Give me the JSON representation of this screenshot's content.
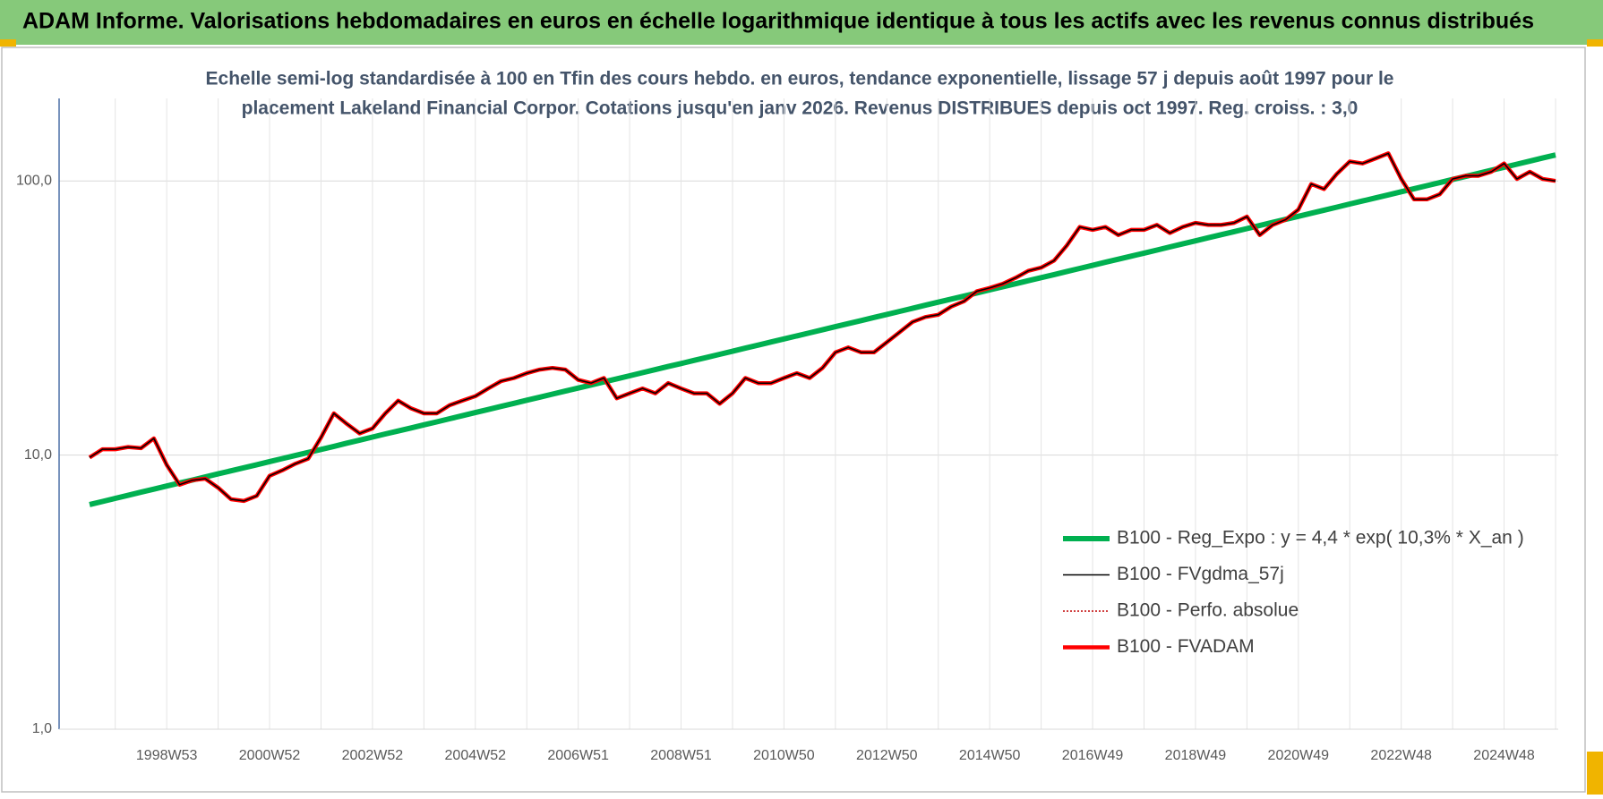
{
  "chart_data": {
    "type": "line",
    "title": "ADAM Informe. Valorisations hebdomadaires en euros en échelle logarithmique identique à tous les actifs avec les revenus connus distribués",
    "subtitle": [
      "Echelle semi-log standardisée à 100 en Tfin des cours hebdo. en euros, tendance exponentielle, lissage 57 j depuis août 1997 pour le",
      "placement Lakeland Financial Corpor. Cotations jusqu'en janv 2026. Revenus DISTRIBUES depuis oct 1997. Reg. croiss. : 3,0"
    ],
    "categories": [
      null,
      null,
      null,
      null,
      null,
      null,
      "1998W53",
      null,
      null,
      null,
      null,
      null,
      null,
      null,
      "2000W52",
      null,
      null,
      null,
      null,
      null,
      null,
      null,
      "2002W52",
      null,
      null,
      null,
      null,
      null,
      null,
      null,
      "2004W52",
      null,
      null,
      null,
      null,
      null,
      null,
      null,
      "2006W51",
      null,
      null,
      null,
      null,
      null,
      null,
      null,
      "2008W51",
      null,
      null,
      null,
      null,
      null,
      null,
      null,
      "2010W50",
      null,
      null,
      null,
      null,
      null,
      null,
      null,
      "2012W50",
      null,
      null,
      null,
      null,
      null,
      null,
      null,
      "2014W50",
      null,
      null,
      null,
      null,
      null,
      null,
      null,
      "2016W49",
      null,
      null,
      null,
      null,
      null,
      null,
      null,
      "2018W49",
      null,
      null,
      null,
      null,
      null,
      null,
      null,
      "2020W49",
      null,
      null,
      null,
      null,
      null,
      null,
      null,
      "2022W48",
      null,
      null,
      null,
      null,
      null,
      null,
      null,
      "2024W48",
      null,
      null,
      null,
      null
    ],
    "yscale": "log",
    "ylim": [
      1,
      200
    ],
    "yticks": [
      {
        "value": 1,
        "label": "1,0"
      },
      {
        "value": 10,
        "label": "10,0"
      },
      {
        "value": 100,
        "label": "100,0"
      }
    ],
    "grid": true,
    "legend": "lower right",
    "series": [
      {
        "name": "B100 - Reg_Expo : y = 4,4 * exp( 10,3% *  X_an )",
        "color": "#00b050",
        "line_width": 6,
        "dashed": false,
        "values": [
          6.6,
          6.77,
          6.95,
          7.13,
          7.32,
          7.51,
          7.71,
          7.91,
          8.11,
          8.32,
          8.54,
          8.76,
          8.99,
          9.22,
          9.47,
          9.71,
          9.96,
          10.22,
          10.49,
          10.76,
          11.05,
          11.34,
          11.63,
          11.94,
          12.24,
          12.56,
          12.89,
          13.22,
          13.57,
          13.92,
          14.29,
          14.66,
          15.05,
          15.44,
          15.85,
          16.26,
          16.68,
          17.12,
          17.56,
          18.02,
          18.49,
          18.97,
          19.47,
          19.98,
          20.5,
          21.04,
          21.58,
          22.15,
          22.72,
          23.31,
          23.92,
          24.55,
          25.19,
          25.85,
          26.52,
          27.22,
          27.92,
          28.65,
          29.4,
          30.16,
          30.95,
          31.76,
          32.59,
          33.44,
          34.31,
          35.21,
          36.13,
          37.07,
          38.03,
          39.02,
          40.04,
          41.09,
          42.16,
          43.26,
          44.39,
          45.55,
          46.74,
          47.96,
          49.21,
          50.5,
          51.81,
          53.16,
          54.55,
          55.97,
          57.43,
          58.93,
          60.47,
          62.05,
          63.66,
          65.32,
          67.03,
          68.78,
          70.57,
          72.41,
          74.3,
          76.24,
          78.23,
          80.27,
          82.37,
          84.52,
          86.72,
          88.98,
          91.31,
          93.69,
          96.13,
          98.64,
          101.21,
          103.86,
          106.56,
          109.34,
          112.2,
          115.13,
          118.12,
          121.2,
          124.37
        ]
      },
      {
        "name": "B100 - FVgdma_57j",
        "color": "#000000",
        "line_width": 1.5,
        "dashed": false,
        "values": [
          9.8,
          10.5,
          10.5,
          10.7,
          10.6,
          11.5,
          9.2,
          7.8,
          8.1,
          8.2,
          7.6,
          6.9,
          6.8,
          7.1,
          8.4,
          8.8,
          9.3,
          9.7,
          11.6,
          14.2,
          13.0,
          12.0,
          12.5,
          14.2,
          15.8,
          14.8,
          14.2,
          14.2,
          15.2,
          15.8,
          16.4,
          17.5,
          18.6,
          19.1,
          19.9,
          20.5,
          20.8,
          20.5,
          18.8,
          18.3,
          19.1,
          16.1,
          16.8,
          17.5,
          16.8,
          18.3,
          17.5,
          16.8,
          16.8,
          15.4,
          16.8,
          19.1,
          18.3,
          18.3,
          19.1,
          19.9,
          19.1,
          20.8,
          23.7,
          24.7,
          23.7,
          23.7,
          25.8,
          28.1,
          30.6,
          31.9,
          32.5,
          34.8,
          36.4,
          39.6,
          40.7,
          42.1,
          44.3,
          47.0,
          48.3,
          51.2,
          58.2,
          67.9,
          66.3,
          67.9,
          63.5,
          66.3,
          66.3,
          69.1,
          64.6,
          67.9,
          70.3,
          69.1,
          69.1,
          70.3,
          74.1,
          63.5,
          69.1,
          72.2,
          78.6,
          97.4,
          93.4,
          106.2,
          117.7,
          115.8,
          120.8,
          126.1,
          101.7,
          85.7,
          85.7,
          89.4,
          101.7,
          104.4,
          104.4,
          108.0,
          115.8,
          101.7,
          108.0,
          101.7,
          100.0
        ]
      },
      {
        "name": "B100 - Perfo. absolue",
        "color": "#c00000",
        "line_width": 1.5,
        "dashed": true,
        "values": [
          9.8,
          10.5,
          10.5,
          10.7,
          10.6,
          11.5,
          9.2,
          7.8,
          8.1,
          8.2,
          7.6,
          6.9,
          6.8,
          7.1,
          8.4,
          8.8,
          9.3,
          9.7,
          11.6,
          14.2,
          13.0,
          12.0,
          12.5,
          14.2,
          15.8,
          14.8,
          14.2,
          14.2,
          15.2,
          15.8,
          16.4,
          17.5,
          18.6,
          19.1,
          19.9,
          20.5,
          20.8,
          20.5,
          18.8,
          18.3,
          19.1,
          16.1,
          16.8,
          17.5,
          16.8,
          18.3,
          17.5,
          16.8,
          16.8,
          15.4,
          16.8,
          19.1,
          18.3,
          18.3,
          19.1,
          19.9,
          19.1,
          20.8,
          23.7,
          24.7,
          23.7,
          23.7,
          25.8,
          28.1,
          30.6,
          31.9,
          32.5,
          34.8,
          36.4,
          39.6,
          40.7,
          42.1,
          44.3,
          47.0,
          48.3,
          51.2,
          58.2,
          67.9,
          66.3,
          67.9,
          63.5,
          66.3,
          66.3,
          69.1,
          64.6,
          67.9,
          70.3,
          69.1,
          69.1,
          70.3,
          74.1,
          63.5,
          69.1,
          72.2,
          78.6,
          97.4,
          93.4,
          106.2,
          117.7,
          115.8,
          120.8,
          126.1,
          101.7,
          85.7,
          85.7,
          89.4,
          101.7,
          104.4,
          104.4,
          108.0,
          115.8,
          101.7,
          108.0,
          101.7,
          100.0
        ]
      },
      {
        "name": "B100 - FVADAM",
        "color": "#ff0000",
        "line_width": 4.5,
        "dashed": false,
        "values": [
          9.8,
          10.5,
          10.5,
          10.7,
          10.6,
          11.5,
          9.2,
          7.8,
          8.1,
          8.2,
          7.6,
          6.9,
          6.8,
          7.1,
          8.4,
          8.8,
          9.3,
          9.7,
          11.6,
          14.2,
          13.0,
          12.0,
          12.5,
          14.2,
          15.8,
          14.8,
          14.2,
          14.2,
          15.2,
          15.8,
          16.4,
          17.5,
          18.6,
          19.1,
          19.9,
          20.5,
          20.8,
          20.5,
          18.8,
          18.3,
          19.1,
          16.1,
          16.8,
          17.5,
          16.8,
          18.3,
          17.5,
          16.8,
          16.8,
          15.4,
          16.8,
          19.1,
          18.3,
          18.3,
          19.1,
          19.9,
          19.1,
          20.8,
          23.7,
          24.7,
          23.7,
          23.7,
          25.8,
          28.1,
          30.6,
          31.9,
          32.5,
          34.8,
          36.4,
          39.6,
          40.7,
          42.1,
          44.3,
          47.0,
          48.3,
          51.2,
          58.2,
          67.9,
          66.3,
          67.9,
          63.5,
          66.3,
          66.3,
          69.1,
          64.6,
          67.9,
          70.3,
          69.1,
          69.1,
          70.3,
          74.1,
          63.5,
          69.1,
          72.2,
          78.6,
          97.4,
          93.4,
          106.2,
          117.7,
          115.8,
          120.8,
          126.1,
          101.7,
          85.7,
          85.7,
          89.4,
          101.7,
          104.4,
          104.4,
          108.0,
          115.8,
          101.7,
          108.0,
          101.7,
          100.0
        ]
      }
    ]
  }
}
